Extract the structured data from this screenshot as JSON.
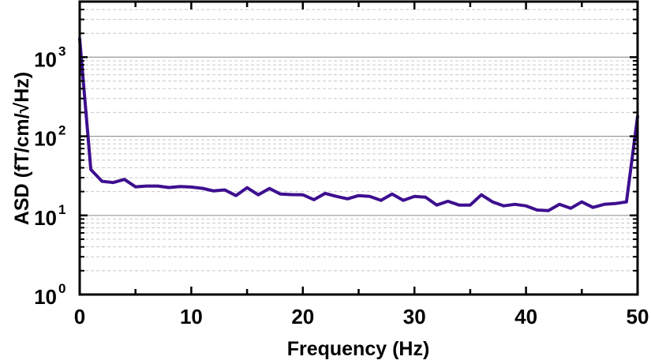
{
  "chart_data": {
    "type": "line",
    "title": "",
    "xlabel": "Frequency (Hz)",
    "ylabel": "ASD (fT/cm/√Hz)",
    "xscale": "linear",
    "yscale": "log",
    "xlim": [
      0,
      50
    ],
    "ylim": [
      1,
      5000
    ],
    "xticks": [
      0,
      10,
      20,
      30,
      40,
      50
    ],
    "xtick_labels": [
      "0",
      "10",
      "20",
      "30",
      "40",
      "50"
    ],
    "yticks": [
      1,
      10,
      100,
      1000
    ],
    "ytick_labels": [
      {
        "base": "10",
        "exp": "0"
      },
      {
        "base": "10",
        "exp": "1"
      },
      {
        "base": "10",
        "exp": "2"
      },
      {
        "base": "10",
        "exp": "3"
      }
    ],
    "grid": {
      "major": true,
      "minor": true,
      "axis": "y"
    },
    "legend": null,
    "line_color": "#3d0f8f",
    "series": [
      {
        "name": "ASD",
        "x": [
          0,
          1,
          2,
          3,
          4,
          5,
          6,
          7,
          8,
          9,
          10,
          11,
          12,
          13,
          14,
          15,
          16,
          17,
          18,
          19,
          20,
          21,
          22,
          23,
          24,
          25,
          26,
          27,
          28,
          29,
          30,
          31,
          32,
          33,
          34,
          35,
          36,
          37,
          38,
          39,
          40,
          41,
          42,
          43,
          44,
          45,
          46,
          47,
          48,
          49,
          50
        ],
        "y": [
          1700,
          38,
          27,
          26,
          28.5,
          23,
          23.5,
          23.5,
          22.5,
          23.2,
          22.8,
          22,
          20.4,
          21,
          17.8,
          22.4,
          18.2,
          21.9,
          18.6,
          18.3,
          18.2,
          15.8,
          19,
          17.4,
          16.2,
          17.8,
          17.4,
          15.5,
          18.6,
          15.5,
          17.4,
          17,
          13.5,
          15.1,
          13.5,
          13.5,
          18.2,
          14.8,
          13.2,
          13.8,
          13.2,
          11.7,
          11.5,
          13.8,
          12.3,
          14.8,
          12.6,
          13.8,
          14.1,
          14.8,
          178
        ]
      }
    ]
  }
}
